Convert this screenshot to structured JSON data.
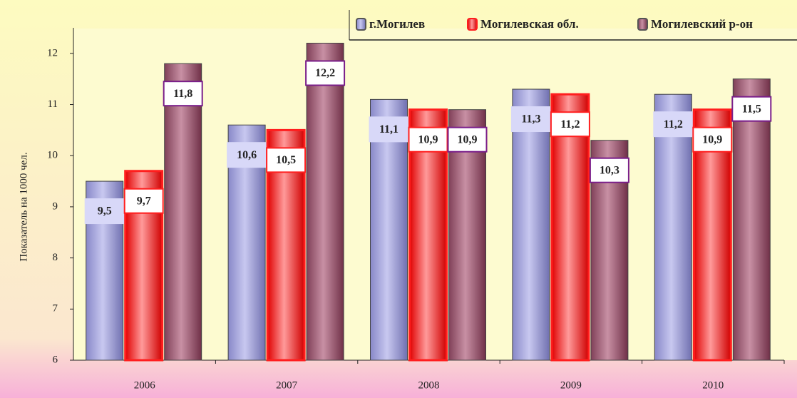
{
  "chart_data": {
    "type": "bar",
    "y_label": "Показатель на 1000 чел.",
    "categories": [
      "2006",
      "2007",
      "2008",
      "2009",
      "2010"
    ],
    "series": [
      {
        "name": "г.Могилев",
        "color": "#9a9ad8",
        "values": [
          9.5,
          10.6,
          11.1,
          11.3,
          11.2
        ],
        "value_labels": [
          "9,5",
          "10,6",
          "11,1",
          "11,3",
          "11,2"
        ]
      },
      {
        "name": "Могилевская обл.",
        "color": "#ff1e1e",
        "values": [
          9.7,
          10.5,
          10.9,
          11.2,
          10.9
        ],
        "value_labels": [
          "9,7",
          "10,5",
          "10,9",
          "11,2",
          "10,9"
        ]
      },
      {
        "name": "Могилевский р-он",
        "color": "#9a5068",
        "values": [
          11.8,
          12.2,
          10.9,
          10.3,
          11.5
        ],
        "value_labels": [
          "11,8",
          "12,2",
          "10,9",
          "10,3",
          "11,5"
        ]
      }
    ],
    "ylim": [
      6,
      12.5
    ],
    "yticks": [
      6,
      7,
      8,
      9,
      10,
      11,
      12
    ],
    "legend": "top-right"
  }
}
